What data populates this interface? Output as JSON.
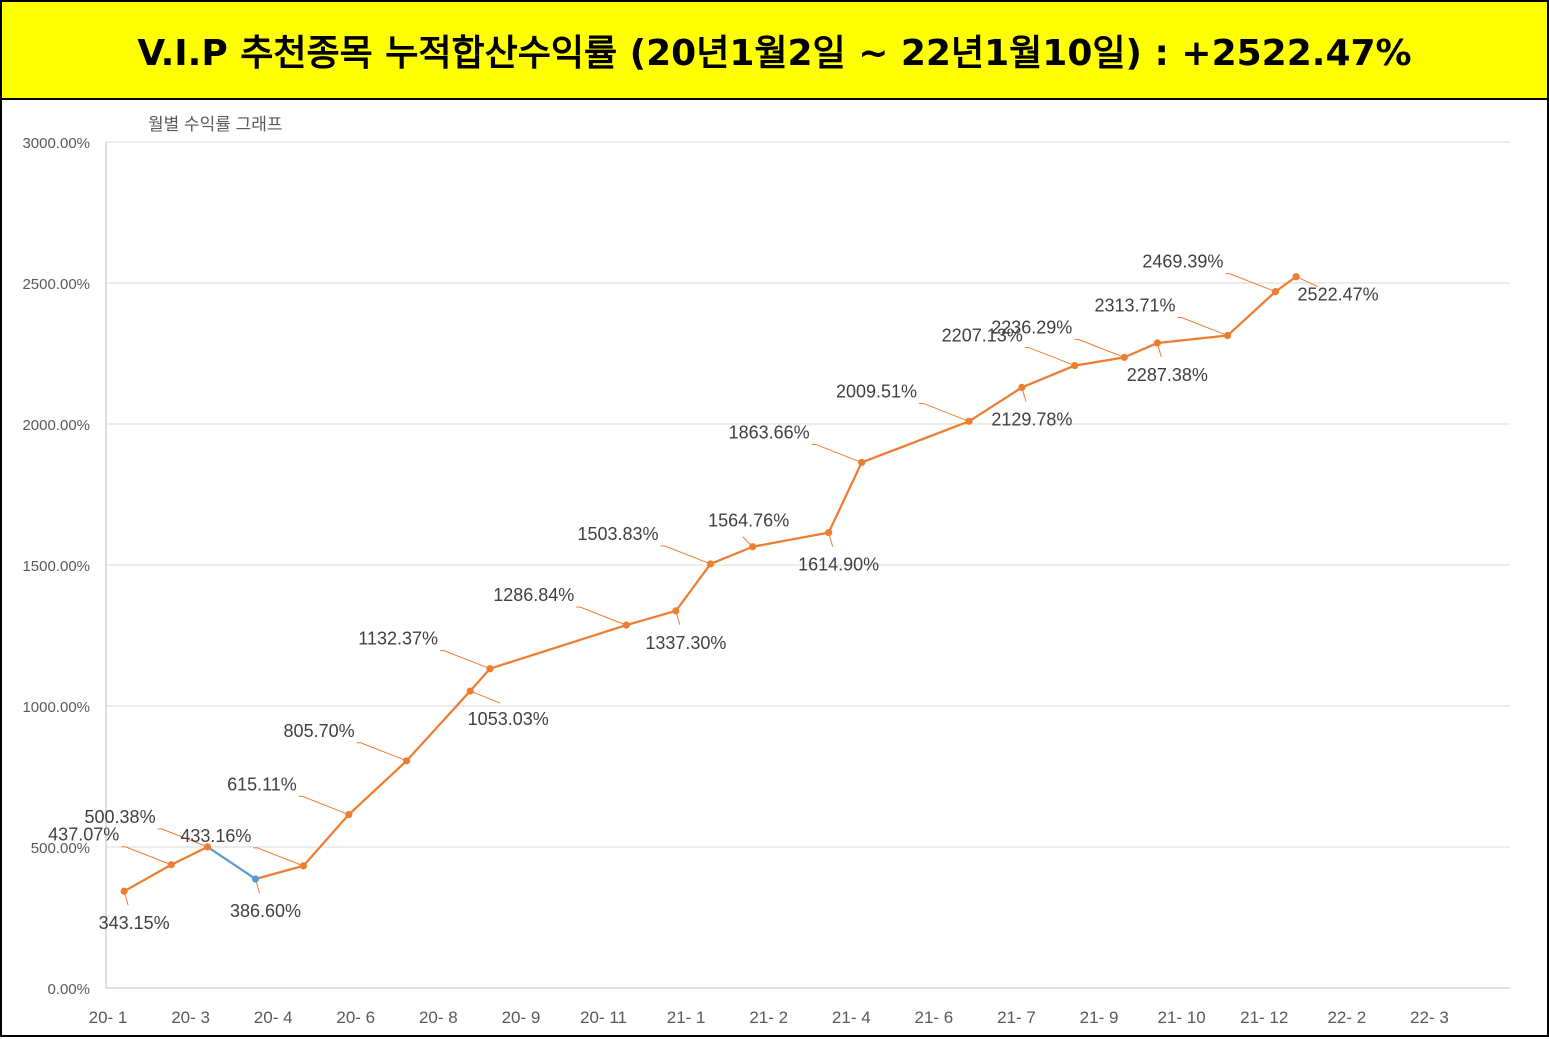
{
  "header": {
    "title": "V.I.P 추천종목 누적합산수익률 (20년1월2일 ~ 22년1월10일) : +2522.47%"
  },
  "chart_data": {
    "type": "line",
    "title": "월별 수익률 그래프",
    "xlabel": "",
    "ylabel": "",
    "ylim": [
      0,
      3000
    ],
    "y_ticks": [
      "0.00%",
      "500.00%",
      "1000.00%",
      "1500.00%",
      "2000.00%",
      "2500.00%",
      "3000.00%"
    ],
    "y_tick_values": [
      0,
      500,
      1000,
      1500,
      2000,
      2500,
      3000
    ],
    "x_ticks": [
      "20- 1",
      "20- 3",
      "20- 4",
      "20- 6",
      "20- 8",
      "20- 9",
      "20- 11",
      "21- 1",
      "21- 2",
      "21- 4",
      "21- 6",
      "21- 7",
      "21- 9",
      "21- 10",
      "21- 12",
      "22- 2",
      "22- 3"
    ],
    "grid": true,
    "legend": "none",
    "line_color": "#ed7d31",
    "negative_segment_color": "#5b9bd5",
    "points": [
      {
        "x": 0.22,
        "y": 343.15,
        "label": "343.15%",
        "lpos": "below"
      },
      {
        "x": 0.79,
        "y": 437.07,
        "label": "437.07%",
        "lpos": "above-left"
      },
      {
        "x": 1.23,
        "y": 500.38,
        "label": "500.38%",
        "lpos": "above-left"
      },
      {
        "x": 1.81,
        "y": 386.6,
        "label": "386.60%",
        "lpos": "below"
      },
      {
        "x": 2.39,
        "y": 433.16,
        "label": "433.16%",
        "lpos": "above-left"
      },
      {
        "x": 2.94,
        "y": 615.11,
        "label": "615.11%",
        "lpos": "above-left"
      },
      {
        "x": 3.64,
        "y": 805.7,
        "label": "805.70%",
        "lpos": "above-left"
      },
      {
        "x": 4.41,
        "y": 1053.03,
        "label": "1053.03%",
        "lpos": "below-right"
      },
      {
        "x": 4.65,
        "y": 1132.37,
        "label": "1132.37%",
        "lpos": "above-left"
      },
      {
        "x": 6.3,
        "y": 1286.84,
        "label": "1286.84%",
        "lpos": "above-left"
      },
      {
        "x": 6.9,
        "y": 1337.3,
        "label": "1337.30%",
        "lpos": "below"
      },
      {
        "x": 7.32,
        "y": 1503.83,
        "label": "1503.83%",
        "lpos": "above-left"
      },
      {
        "x": 7.83,
        "y": 1564.76,
        "label": "1564.76%",
        "lpos": "above"
      },
      {
        "x": 8.75,
        "y": 1614.9,
        "label": "1614.90%",
        "lpos": "below"
      },
      {
        "x": 9.15,
        "y": 1863.66,
        "label": "1863.66%",
        "lpos": "above-left"
      },
      {
        "x": 10.45,
        "y": 2009.51,
        "label": "2009.51%",
        "lpos": "above-left"
      },
      {
        "x": 11.09,
        "y": 2129.78,
        "label": "2129.78%",
        "lpos": "below"
      },
      {
        "x": 11.73,
        "y": 2207.13,
        "label": "2207.13%",
        "lpos": "above-left"
      },
      {
        "x": 12.33,
        "y": 2236.29,
        "label": "2236.29%",
        "lpos": "above-left"
      },
      {
        "x": 12.73,
        "y": 2287.38,
        "label": "2287.38%",
        "lpos": "below"
      },
      {
        "x": 13.58,
        "y": 2313.71,
        "label": "2313.71%",
        "lpos": "above-left"
      },
      {
        "x": 14.16,
        "y": 2469.39,
        "label": "2469.39%",
        "lpos": "above-left"
      },
      {
        "x": 14.41,
        "y": 2522.47,
        "label": "2522.47%",
        "lpos": "right"
      }
    ]
  }
}
